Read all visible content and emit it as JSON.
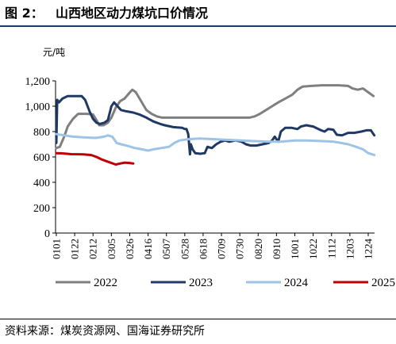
{
  "figure": {
    "label": "图 2：",
    "title": "山西地区动力煤坑口价情况",
    "source": "资料来源：煤炭资源网、国海证券研究所"
  },
  "chart_data": {
    "type": "line",
    "ylabel": "元/吨",
    "ylim": [
      0,
      1200
    ],
    "yticks": [
      "0",
      "200",
      "400",
      "600",
      "800",
      "1,000",
      "1,200"
    ],
    "yticks_values": [
      0,
      200,
      400,
      600,
      800,
      1000,
      1200
    ],
    "categories": [
      "0101",
      "0122",
      "0212",
      "0305",
      "0326",
      "0416",
      "0507",
      "0528",
      "0618",
      "0709",
      "0730",
      "0820",
      "0910",
      "1001",
      "1022",
      "1112",
      "1203",
      "1224"
    ],
    "x_label_format": "MMDD",
    "grid": false,
    "legend_position": "bottom",
    "series": [
      {
        "name": "2022",
        "color": "#7f7f7f",
        "points": [
          [
            "01-01",
            670
          ],
          [
            "01-05",
            680
          ],
          [
            "01-10",
            760
          ],
          [
            "01-14",
            840
          ],
          [
            "01-20",
            900
          ],
          [
            "01-26",
            940
          ],
          [
            "02-05",
            940
          ],
          [
            "02-12",
            935
          ],
          [
            "02-16",
            890
          ],
          [
            "02-19",
            850
          ],
          [
            "02-24",
            850
          ],
          [
            "03-01",
            870
          ],
          [
            "03-05",
            910
          ],
          [
            "03-10",
            990
          ],
          [
            "03-15",
            1040
          ],
          [
            "03-20",
            1060
          ],
          [
            "03-25",
            1100
          ],
          [
            "03-29",
            1130
          ],
          [
            "04-02",
            1110
          ],
          [
            "04-08",
            1040
          ],
          [
            "04-14",
            970
          ],
          [
            "04-20",
            940
          ],
          [
            "04-26",
            920
          ],
          [
            "05-02",
            910
          ],
          [
            "05-10",
            910
          ],
          [
            "05-20",
            910
          ],
          [
            "06-10",
            910
          ],
          [
            "07-01",
            910
          ],
          [
            "07-20",
            910
          ],
          [
            "08-10",
            910
          ],
          [
            "08-16",
            920
          ],
          [
            "08-22",
            940
          ],
          [
            "08-29",
            970
          ],
          [
            "09-05",
            1000
          ],
          [
            "09-12",
            1030
          ],
          [
            "09-20",
            1060
          ],
          [
            "09-28",
            1090
          ],
          [
            "10-04",
            1130
          ],
          [
            "10-10",
            1155
          ],
          [
            "10-20",
            1160
          ],
          [
            "11-01",
            1165
          ],
          [
            "11-20",
            1165
          ],
          [
            "12-01",
            1160
          ],
          [
            "12-06",
            1140
          ],
          [
            "12-12",
            1130
          ],
          [
            "12-18",
            1140
          ],
          [
            "12-22",
            1120
          ],
          [
            "12-26",
            1100
          ],
          [
            "12-30",
            1080
          ]
        ]
      },
      {
        "name": "2023",
        "color": "#1f3864",
        "points": [
          [
            "01-01",
            710
          ],
          [
            "01-02",
            1050
          ],
          [
            "01-04",
            1030
          ],
          [
            "01-08",
            1060
          ],
          [
            "01-14",
            1080
          ],
          [
            "01-22",
            1080
          ],
          [
            "01-30",
            1080
          ],
          [
            "02-03",
            1050
          ],
          [
            "02-08",
            960
          ],
          [
            "02-12",
            900
          ],
          [
            "02-16",
            870
          ],
          [
            "02-20",
            860
          ],
          [
            "02-25",
            870
          ],
          [
            "03-01",
            890
          ],
          [
            "03-05",
            1000
          ],
          [
            "03-08",
            1030
          ],
          [
            "03-12",
            1000
          ],
          [
            "03-16",
            970
          ],
          [
            "03-22",
            960
          ],
          [
            "03-30",
            950
          ],
          [
            "04-06",
            935
          ],
          [
            "04-14",
            910
          ],
          [
            "04-22",
            880
          ],
          [
            "04-30",
            860
          ],
          [
            "05-05",
            850
          ],
          [
            "05-15",
            835
          ],
          [
            "05-25",
            830
          ],
          [
            "05-28",
            820
          ],
          [
            "05-30",
            820
          ],
          [
            "06-01",
            780
          ],
          [
            "06-03",
            620
          ],
          [
            "06-04",
            700
          ],
          [
            "06-06",
            660
          ],
          [
            "06-09",
            630
          ],
          [
            "06-15",
            625
          ],
          [
            "06-20",
            630
          ],
          [
            "06-23",
            680
          ],
          [
            "06-28",
            670
          ],
          [
            "07-03",
            700
          ],
          [
            "07-08",
            720
          ],
          [
            "07-13",
            730
          ],
          [
            "07-18",
            720
          ],
          [
            "07-25",
            730
          ],
          [
            "08-01",
            720
          ],
          [
            "08-06",
            700
          ],
          [
            "08-11",
            690
          ],
          [
            "08-18",
            690
          ],
          [
            "08-25",
            700
          ],
          [
            "09-01",
            710
          ],
          [
            "09-05",
            730
          ],
          [
            "09-08",
            760
          ],
          [
            "09-12",
            720
          ],
          [
            "09-15",
            800
          ],
          [
            "09-20",
            830
          ],
          [
            "09-27",
            830
          ],
          [
            "10-04",
            820
          ],
          [
            "10-08",
            840
          ],
          [
            "10-14",
            850
          ],
          [
            "10-22",
            840
          ],
          [
            "10-31",
            810
          ],
          [
            "11-04",
            800
          ],
          [
            "11-08",
            820
          ],
          [
            "11-14",
            815
          ],
          [
            "11-18",
            775
          ],
          [
            "11-24",
            770
          ],
          [
            "12-01",
            790
          ],
          [
            "12-08",
            790
          ],
          [
            "12-16",
            800
          ],
          [
            "12-22",
            810
          ],
          [
            "12-27",
            810
          ],
          [
            "12-31",
            770
          ]
        ]
      },
      {
        "name": "2024",
        "color": "#9dc3e6",
        "points": [
          [
            "01-01",
            780
          ],
          [
            "01-10",
            770
          ],
          [
            "01-20",
            760
          ],
          [
            "02-01",
            755
          ],
          [
            "02-15",
            750
          ],
          [
            "02-25",
            760
          ],
          [
            "03-01",
            770
          ],
          [
            "03-06",
            760
          ],
          [
            "03-11",
            710
          ],
          [
            "03-16",
            700
          ],
          [
            "03-22",
            690
          ],
          [
            "04-01",
            670
          ],
          [
            "04-09",
            660
          ],
          [
            "04-16",
            650
          ],
          [
            "04-22",
            660
          ],
          [
            "05-01",
            670
          ],
          [
            "05-10",
            680
          ],
          [
            "05-16",
            710
          ],
          [
            "05-22",
            730
          ],
          [
            "06-01",
            740
          ],
          [
            "06-15",
            745
          ],
          [
            "07-01",
            740
          ],
          [
            "07-15",
            735
          ],
          [
            "08-01",
            730
          ],
          [
            "08-15",
            725
          ],
          [
            "09-01",
            720
          ],
          [
            "09-15",
            720
          ],
          [
            "10-01",
            730
          ],
          [
            "10-15",
            730
          ],
          [
            "11-01",
            725
          ],
          [
            "11-15",
            720
          ],
          [
            "12-01",
            700
          ],
          [
            "12-10",
            680
          ],
          [
            "12-18",
            660
          ],
          [
            "12-24",
            630
          ],
          [
            "12-31",
            615
          ]
        ]
      },
      {
        "name": "2025",
        "color": "#c00000",
        "points": [
          [
            "01-01",
            630
          ],
          [
            "01-08",
            628
          ],
          [
            "01-18",
            622
          ],
          [
            "02-01",
            620
          ],
          [
            "02-10",
            615
          ],
          [
            "02-16",
            600
          ],
          [
            "02-22",
            580
          ],
          [
            "02-26",
            570
          ],
          [
            "03-02",
            560
          ],
          [
            "03-06",
            550
          ],
          [
            "03-10",
            540
          ],
          [
            "03-15",
            548
          ],
          [
            "03-20",
            555
          ],
          [
            "03-25",
            553
          ],
          [
            "03-30",
            548
          ]
        ]
      }
    ]
  }
}
